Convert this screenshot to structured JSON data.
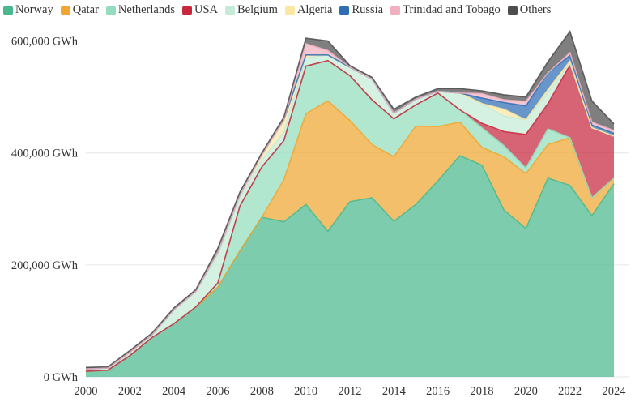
{
  "chart_data": {
    "type": "area",
    "stacked": true,
    "title": "",
    "xlabel": "",
    "ylabel": "",
    "y_unit": "GWh",
    "ylim": [
      0,
      650000
    ],
    "y_ticks": [
      0,
      200000,
      400000,
      600000
    ],
    "y_tick_labels": [
      "0 GWh",
      "200,000 GWh",
      "400,000 GWh",
      "600,000 GWh"
    ],
    "x": [
      2000,
      2001,
      2002,
      2003,
      2004,
      2005,
      2006,
      2007,
      2008,
      2009,
      2010,
      2011,
      2012,
      2013,
      2014,
      2015,
      2016,
      2017,
      2018,
      2019,
      2020,
      2021,
      2022,
      2023,
      2024
    ],
    "x_ticks": [
      2000,
      2002,
      2004,
      2006,
      2008,
      2010,
      2012,
      2014,
      2016,
      2018,
      2020,
      2022,
      2024
    ],
    "x_tick_labels": [
      "2000",
      "2002",
      "2004",
      "2006",
      "2008",
      "2010",
      "2012",
      "2014",
      "2016",
      "2018",
      "2020",
      "2022",
      "2024"
    ],
    "legend_position": "top-left",
    "series": [
      {
        "name": "Norway",
        "color": "#4ab88e",
        "values": [
          10000,
          12000,
          38000,
          70000,
          95000,
          125000,
          160000,
          225000,
          285000,
          277000,
          308000,
          260000,
          313000,
          320000,
          278000,
          308000,
          350000,
          395000,
          378000,
          298000,
          265000,
          355000,
          342000,
          288000,
          345000
        ]
      },
      {
        "name": "Qatar",
        "color": "#f0a630",
        "values": [
          0,
          0,
          0,
          0,
          0,
          0,
          0,
          0,
          0,
          75000,
          162000,
          233000,
          145000,
          95000,
          115000,
          140000,
          97000,
          60000,
          32000,
          95000,
          98000,
          60000,
          85000,
          32000,
          10000
        ]
      },
      {
        "name": "Netherlands",
        "color": "#93dcbd",
        "values": [
          0,
          0,
          0,
          0,
          0,
          0,
          8000,
          80000,
          90000,
          70000,
          85000,
          72000,
          80000,
          80000,
          68000,
          38000,
          60000,
          22000,
          35000,
          20000,
          10000,
          28000,
          0,
          0,
          0
        ]
      },
      {
        "name": "USA",
        "color": "#c8283e",
        "values": [
          0,
          0,
          0,
          0,
          0,
          0,
          0,
          0,
          0,
          0,
          0,
          0,
          0,
          0,
          0,
          0,
          0,
          0,
          8000,
          25000,
          60000,
          45000,
          130000,
          125000,
          75000
        ]
      },
      {
        "name": "Belgium",
        "color": "#c4ebd6",
        "values": [
          4000,
          4000,
          6000,
          5000,
          25000,
          28000,
          50000,
          15000,
          12000,
          15000,
          15000,
          10000,
          15000,
          37000,
          10000,
          10000,
          3000,
          30000,
          35000,
          28000,
          26000,
          20000,
          2000,
          0,
          0
        ]
      },
      {
        "name": "Algeria",
        "color": "#fbe6a2",
        "values": [
          0,
          0,
          0,
          0,
          0,
          0,
          5000,
          5000,
          10000,
          22000,
          5000,
          0,
          0,
          0,
          0,
          0,
          0,
          0,
          0,
          12000,
          0,
          5000,
          5000,
          0,
          0
        ]
      },
      {
        "name": "Russia",
        "color": "#2f6db5",
        "values": [
          0,
          0,
          0,
          0,
          0,
          0,
          0,
          0,
          0,
          0,
          0,
          0,
          0,
          0,
          0,
          0,
          0,
          0,
          10000,
          12000,
          25000,
          30000,
          10000,
          5000,
          5000
        ]
      },
      {
        "name": "Trinidad and Tobago",
        "color": "#f0b0c0",
        "values": [
          0,
          0,
          0,
          0,
          0,
          0,
          0,
          0,
          0,
          0,
          20000,
          8000,
          0,
          0,
          0,
          0,
          0,
          0,
          8000,
          5000,
          8000,
          0,
          5000,
          5000,
          5000
        ]
      },
      {
        "name": "Others",
        "color": "#4d4d4d",
        "values": [
          3000,
          2000,
          3000,
          3000,
          3000,
          3000,
          7000,
          5000,
          3000,
          5000,
          10000,
          17000,
          3000,
          3000,
          7000,
          4000,
          5000,
          8000,
          5000,
          9000,
          8000,
          20000,
          38000,
          38000,
          12000
        ]
      }
    ]
  }
}
